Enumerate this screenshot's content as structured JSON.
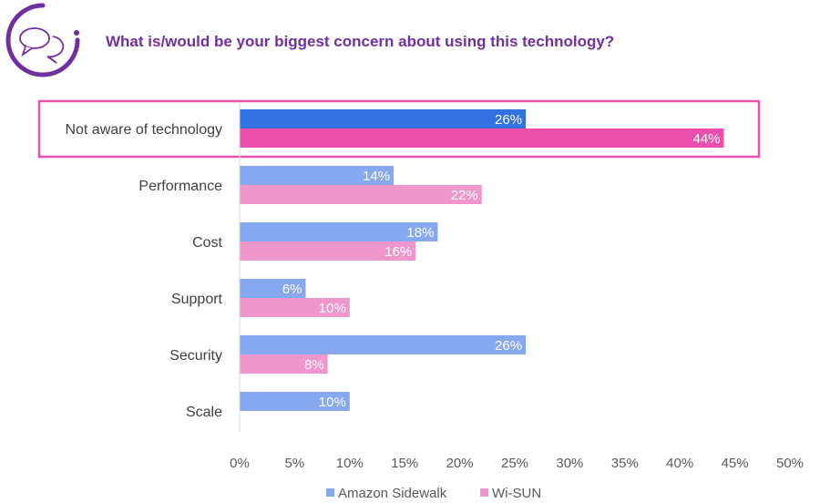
{
  "colors": {
    "title": "#7030A0",
    "sidewalk": "#86A8EE",
    "wisun": "#EF97CC",
    "sidewalk_highlight": "#3370E0",
    "wisun_highlight": "#EA4FAB",
    "highlight_box": "#EA4FAB"
  },
  "logo": {
    "icon": "chat-bubbles-info-icon"
  },
  "chart_data": {
    "type": "bar",
    "orientation": "horizontal",
    "title": "What is/would be your biggest concern about using this technology?",
    "categories": [
      "Not aware of technology",
      "Performance",
      "Cost",
      "Support",
      "Security",
      "Scale"
    ],
    "highlighted_category": "Not aware of technology",
    "series": [
      {
        "name": "Amazon Sidewalk",
        "values": [
          26,
          14,
          18,
          6,
          26,
          10
        ],
        "labels": [
          "26%",
          "14%",
          "18%",
          "6%",
          "26%",
          "10%"
        ]
      },
      {
        "name": "Wi-SUN",
        "values": [
          44,
          22,
          16,
          10,
          8,
          null
        ],
        "labels": [
          "44%",
          "22%",
          "16%",
          "10%",
          "8%",
          ""
        ]
      }
    ],
    "xlim": [
      0,
      50
    ],
    "xticks": [
      "0%",
      "5%",
      "10%",
      "15%",
      "20%",
      "25%",
      "30%",
      "35%",
      "40%",
      "45%",
      "50%"
    ],
    "grid": false,
    "legend": "bottom"
  }
}
